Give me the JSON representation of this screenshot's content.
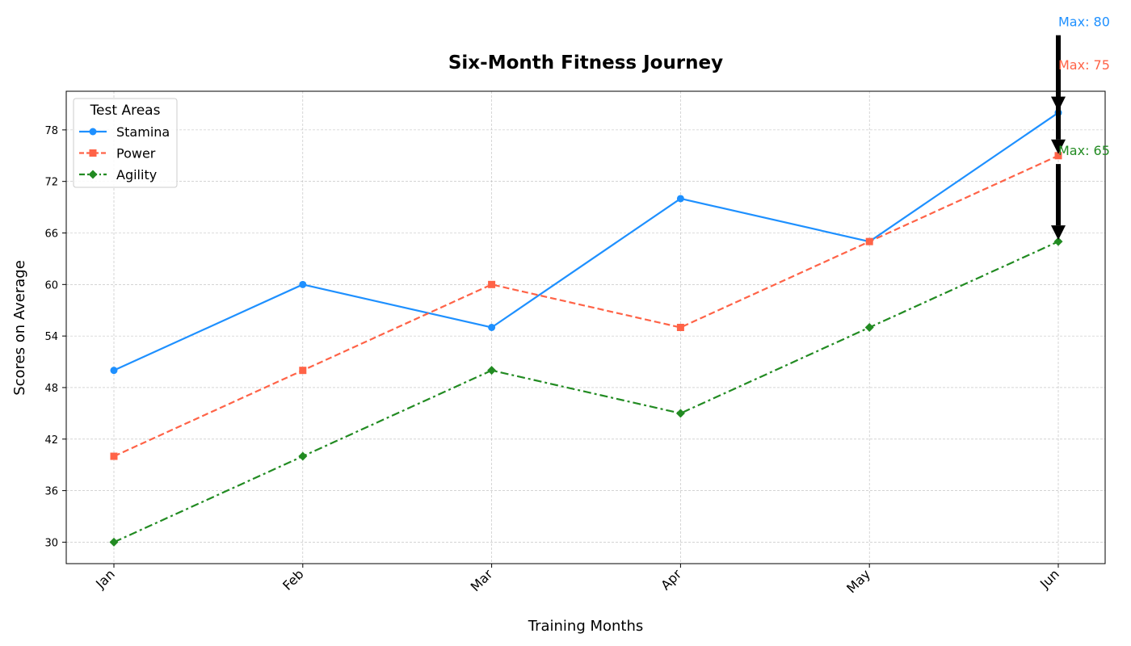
{
  "chart_data": {
    "type": "line",
    "title": "Six-Month Fitness Journey",
    "xlabel": "Training Months",
    "ylabel": "Scores on Average",
    "categories": [
      "Jan",
      "Feb",
      "Mar",
      "Apr",
      "May",
      "Jun"
    ],
    "ylim": [
      27.5,
      82.5
    ],
    "yticks": [
      "30",
      "36",
      "42",
      "48",
      "54",
      "60",
      "66",
      "72",
      "78"
    ],
    "grid": true,
    "legend": {
      "title": "Test Areas",
      "placement": "top-left"
    },
    "series": [
      {
        "name": "Stamina",
        "values": [
          50,
          60,
          55,
          70,
          65,
          80
        ],
        "color": "#1e90ff",
        "style": "solid",
        "marker": "circle",
        "max_label": "Max: 80"
      },
      {
        "name": "Power",
        "values": [
          40,
          50,
          60,
          55,
          65,
          75
        ],
        "color": "#ff6347",
        "style": "dashed",
        "marker": "square",
        "max_label": "Max: 75"
      },
      {
        "name": "Agility",
        "values": [
          30,
          40,
          50,
          45,
          55,
          65
        ],
        "color": "#228b22",
        "style": "dashdot",
        "marker": "diamond",
        "max_label": "Max: 65"
      }
    ]
  }
}
